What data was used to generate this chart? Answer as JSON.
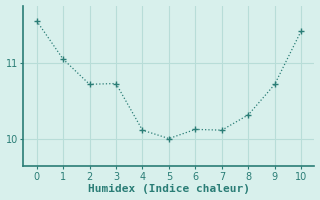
{
  "x": [
    0,
    1,
    2,
    3,
    4,
    5,
    6,
    7,
    8,
    9,
    10
  ],
  "y": [
    11.55,
    11.05,
    10.72,
    10.73,
    10.12,
    10.01,
    10.13,
    10.12,
    10.32,
    10.72,
    11.42
  ],
  "line_color": "#2a7d76",
  "marker": "+",
  "marker_size": 4,
  "background_color": "#d8f0ec",
  "grid_color": "#b8ddd8",
  "spine_color": "#2a7d76",
  "xlabel": "Humidex (Indice chaleur)",
  "xlabel_fontsize": 8,
  "tick_fontsize": 7,
  "yticks": [
    10,
    11
  ],
  "ylim": [
    9.65,
    11.75
  ],
  "xlim": [
    -0.5,
    10.5
  ],
  "xticks": [
    0,
    1,
    2,
    3,
    4,
    5,
    6,
    7,
    8,
    9,
    10
  ]
}
